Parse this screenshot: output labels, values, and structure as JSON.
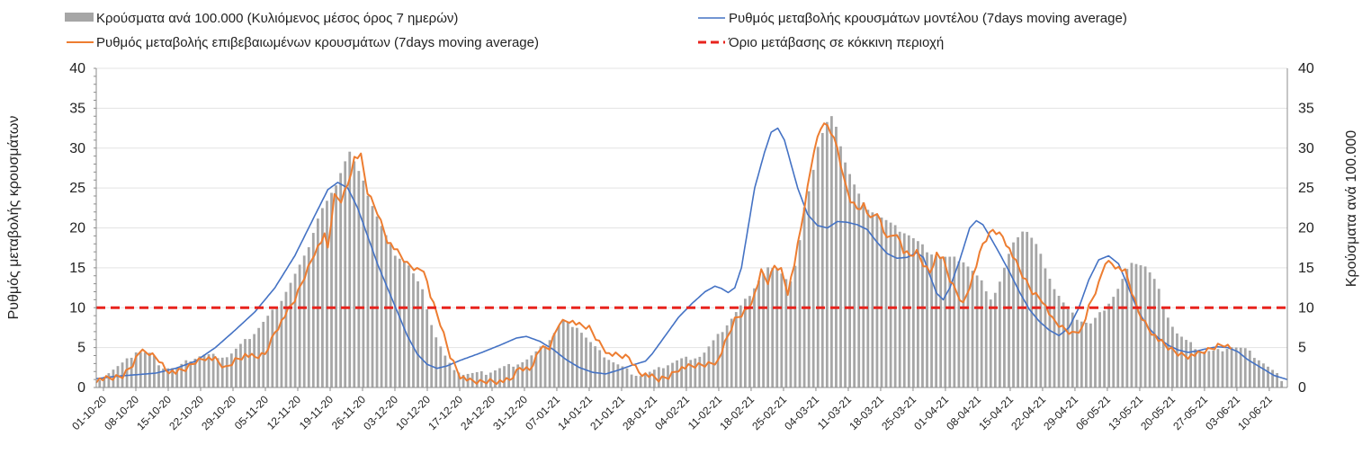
{
  "chart_data": {
    "type": "bar+line",
    "legend": [
      {
        "key": "bars",
        "label": "Κρούσματα ανά 100.000 (Κυλιόμενος μέσος όρος 7 ημερών)",
        "color": "#a6a6a6",
        "style": "bar"
      },
      {
        "key": "model",
        "label": "Ρυθμός μεταβολής κρουσμάτων μοντέλου (7days moving average)",
        "color": "#4472c4",
        "style": "line"
      },
      {
        "key": "confirmed",
        "label": "Ρυθμός μεταβολής επιβεβαιωμένων κρουσμάτων (7days moving average)",
        "color": "#ed7d31",
        "style": "line"
      },
      {
        "key": "threshold",
        "label": "Όριο μετάβασης σε κόκκινη περιοχή",
        "color": "#e8231d",
        "style": "dashed"
      }
    ],
    "y_left_label": "Ρυθμός μεταβολής κρουσμάτων",
    "y_right_label": "Κρούσματα ανά 100.000",
    "y_left_ticks": [
      "0",
      "5",
      "10",
      "15",
      "20",
      "25",
      "30",
      "35",
      "40"
    ],
    "y_right_ticks": [
      "0",
      "5",
      "10",
      "15",
      "20",
      "25",
      "30",
      "35",
      "40"
    ],
    "ylim": [
      0,
      40
    ],
    "threshold": 10,
    "x_ticks": [
      "01-10-20",
      "08-10-20",
      "15-10-20",
      "22-10-20",
      "29-10-20",
      "05-11-20",
      "12-11-20",
      "19-11-20",
      "26-11-20",
      "03-12-20",
      "10-12-20",
      "17-12-20",
      "24-12-20",
      "31-12-20",
      "07-01-21",
      "14-01-21",
      "21-01-21",
      "28-01-21",
      "04-02-21",
      "11-02-21",
      "18-02-21",
      "25-02-21",
      "04-03-21",
      "11-03-21",
      "18-03-21",
      "25-03-21",
      "01-04-21",
      "08-04-21",
      "15-04-21",
      "22-04-21",
      "29-04-21",
      "06-05-21",
      "13-05-21",
      "20-05-21",
      "27-05-21",
      "03-06-21",
      "10-06-21"
    ],
    "n_days": 261,
    "bar_anchors": [
      [
        0,
        1.2
      ],
      [
        7,
        3.2
      ],
      [
        10,
        4.6
      ],
      [
        14,
        4.2
      ],
      [
        17,
        2.6
      ],
      [
        21,
        2.4
      ],
      [
        25,
        3.6
      ],
      [
        28,
        4.1
      ],
      [
        35,
        3.9
      ],
      [
        42,
        6.8
      ],
      [
        49,
        10.6
      ],
      [
        56,
        16.5
      ],
      [
        60,
        22
      ],
      [
        63,
        24
      ],
      [
        66,
        27.5
      ],
      [
        68,
        29.7
      ],
      [
        72,
        25.5
      ],
      [
        76,
        21
      ],
      [
        80,
        17
      ],
      [
        84,
        15.5
      ],
      [
        88,
        12
      ],
      [
        91,
        7
      ],
      [
        95,
        3
      ],
      [
        99,
        1.7
      ],
      [
        105,
        1.8
      ],
      [
        109,
        2.4
      ],
      [
        112,
        2.8
      ],
      [
        116,
        3.4
      ],
      [
        119,
        4.4
      ],
      [
        122,
        5.7
      ],
      [
        126,
        8.3
      ],
      [
        130,
        7.7
      ],
      [
        133,
        6
      ],
      [
        136,
        4.5
      ],
      [
        140,
        3.2
      ],
      [
        144,
        2.1
      ],
      [
        147,
        1.5
      ],
      [
        152,
        2.2
      ],
      [
        154,
        2.8
      ],
      [
        158,
        3.5
      ],
      [
        164,
        4.0
      ],
      [
        168,
        6.2
      ],
      [
        172,
        8.6
      ],
      [
        176,
        11
      ],
      [
        180,
        13.8
      ],
      [
        182,
        15
      ],
      [
        186,
        14.5
      ],
      [
        188,
        13
      ],
      [
        190,
        16
      ],
      [
        192,
        22.5
      ],
      [
        194,
        26.5
      ],
      [
        196,
        31
      ],
      [
        198,
        33
      ],
      [
        199,
        34.3
      ],
      [
        201,
        32
      ],
      [
        203,
        28.5
      ],
      [
        205,
        26
      ],
      [
        208,
        23
      ],
      [
        211,
        22
      ],
      [
        214,
        21
      ],
      [
        217,
        20
      ],
      [
        220,
        19.3
      ],
      [
        223,
        18.2
      ],
      [
        226,
        17
      ],
      [
        229,
        16.4
      ],
      [
        232,
        16.2
      ],
      [
        235,
        16
      ],
      [
        238,
        14.5
      ],
      [
        241,
        12.8
      ],
      [
        243,
        11
      ],
      [
        245,
        13
      ],
      [
        248,
        17
      ],
      [
        250,
        19
      ],
      [
        252,
        20
      ],
      [
        255,
        18
      ],
      [
        258,
        14.8
      ],
      [
        260,
        12.5
      ],
      [
        262,
        11
      ],
      [
        264,
        9.5
      ],
      [
        266,
        8.8
      ],
      [
        268,
        8.3
      ],
      [
        270,
        8
      ],
      [
        273,
        9.5
      ],
      [
        277,
        12
      ],
      [
        280,
        14.8
      ],
      [
        282,
        15.8
      ],
      [
        285,
        15.2
      ],
      [
        288,
        13
      ],
      [
        290,
        10
      ],
      [
        293,
        7
      ],
      [
        296,
        5.8
      ],
      [
        300,
        4.6
      ],
      [
        304,
        4.5
      ],
      [
        308,
        5.2
      ],
      [
        312,
        4.8
      ],
      [
        316,
        3.5
      ],
      [
        322,
        1.1
      ]
    ],
    "model_anchors": [
      [
        0,
        1.1
      ],
      [
        6,
        1.4
      ],
      [
        12,
        1.6
      ],
      [
        18,
        1.8
      ],
      [
        24,
        2.4
      ],
      [
        30,
        3.3
      ],
      [
        36,
        5
      ],
      [
        42,
        7.2
      ],
      [
        48,
        9.5
      ],
      [
        54,
        12.5
      ],
      [
        60,
        16.5
      ],
      [
        66,
        21.5
      ],
      [
        70,
        24.8
      ],
      [
        73,
        25.7
      ],
      [
        76,
        25
      ],
      [
        79,
        22.5
      ],
      [
        82,
        19
      ],
      [
        85,
        15.5
      ],
      [
        88,
        12.5
      ],
      [
        91,
        9.5
      ],
      [
        94,
        6.5
      ],
      [
        97,
        4.2
      ],
      [
        100,
        2.9
      ],
      [
        103,
        2.4
      ],
      [
        106,
        2.7
      ],
      [
        110,
        3.4
      ],
      [
        116,
        4.3
      ],
      [
        122,
        5.3
      ],
      [
        127,
        6.2
      ],
      [
        130,
        6.4
      ],
      [
        134,
        5.8
      ],
      [
        138,
        4.8
      ],
      [
        142,
        3.5
      ],
      [
        146,
        2.5
      ],
      [
        150,
        1.9
      ],
      [
        154,
        1.7
      ],
      [
        158,
        2.2
      ],
      [
        162,
        2.8
      ],
      [
        166,
        3.3
      ],
      [
        168,
        4.2
      ],
      [
        172,
        6.5
      ],
      [
        176,
        8.8
      ],
      [
        180,
        10.5
      ],
      [
        184,
        12
      ],
      [
        187,
        12.7
      ],
      [
        189,
        12.4
      ],
      [
        191,
        11.9
      ],
      [
        193,
        12.5
      ],
      [
        195,
        15
      ],
      [
        197,
        20
      ],
      [
        199,
        25
      ],
      [
        202,
        29.5
      ],
      [
        204,
        32
      ],
      [
        206,
        32.5
      ],
      [
        208,
        31
      ],
      [
        210,
        28
      ],
      [
        212,
        25
      ],
      [
        215,
        21.7
      ],
      [
        218,
        20.3
      ],
      [
        221,
        20
      ],
      [
        224,
        20.8
      ],
      [
        227,
        20.7
      ],
      [
        230,
        20.4
      ],
      [
        233,
        19.8
      ],
      [
        236,
        18.2
      ],
      [
        239,
        16.8
      ],
      [
        242,
        16.2
      ],
      [
        245,
        16.3
      ],
      [
        248,
        16.9
      ],
      [
        250,
        16.3
      ],
      [
        252,
        14
      ],
      [
        254,
        11.8
      ],
      [
        256,
        11
      ],
      [
        258,
        12.5
      ],
      [
        261,
        16
      ],
      [
        264,
        20
      ],
      [
        266,
        20.9
      ],
      [
        268,
        20.4
      ],
      [
        270,
        19
      ],
      [
        273,
        16.8
      ],
      [
        276,
        14.5
      ],
      [
        279,
        12
      ],
      [
        282,
        9.8
      ],
      [
        285,
        8.3
      ],
      [
        288,
        7.2
      ],
      [
        291,
        6.5
      ],
      [
        294,
        7.5
      ],
      [
        297,
        10
      ],
      [
        300,
        13.5
      ],
      [
        303,
        16
      ],
      [
        306,
        16.5
      ],
      [
        309,
        15.5
      ],
      [
        312,
        12.5
      ],
      [
        315,
        9.5
      ],
      [
        318,
        7.5
      ],
      [
        321,
        6.2
      ],
      [
        324,
        5.3
      ],
      [
        327,
        4.7
      ],
      [
        330,
        4.4
      ],
      [
        333,
        4.6
      ],
      [
        336,
        4.9
      ],
      [
        339,
        5.1
      ],
      [
        342,
        5.0
      ],
      [
        345,
        4.5
      ],
      [
        348,
        3.5
      ],
      [
        352,
        2.5
      ],
      [
        356,
        1.5
      ],
      [
        360,
        1.0
      ]
    ],
    "confirmed_anchors": [
      [
        0,
        1.0
      ],
      [
        5,
        1.2
      ],
      [
        8,
        1.5
      ],
      [
        11,
        3
      ],
      [
        13,
        4.5
      ],
      [
        16,
        4.3
      ],
      [
        19,
        3.5
      ],
      [
        21,
        2.3
      ],
      [
        24,
        1.9
      ],
      [
        27,
        2.3
      ],
      [
        30,
        3.3
      ],
      [
        33,
        3.8
      ],
      [
        36,
        3.5
      ],
      [
        39,
        2.4
      ],
      [
        42,
        3.5
      ],
      [
        45,
        4.1
      ],
      [
        48,
        3.8
      ],
      [
        51,
        4.2
      ],
      [
        54,
        7
      ],
      [
        57,
        9
      ],
      [
        60,
        11
      ],
      [
        63,
        14
      ],
      [
        66,
        17
      ],
      [
        69,
        19
      ],
      [
        70,
        17.5
      ],
      [
        72,
        24
      ],
      [
        74,
        23.5
      ],
      [
        76,
        25.5
      ],
      [
        78,
        28.8
      ],
      [
        80,
        29
      ],
      [
        82,
        24.5
      ],
      [
        85,
        22
      ],
      [
        88,
        18.5
      ],
      [
        91,
        17
      ],
      [
        94,
        15.5
      ],
      [
        97,
        14.8
      ],
      [
        99,
        14.9
      ],
      [
        101,
        11.5
      ],
      [
        104,
        8
      ],
      [
        107,
        4
      ],
      [
        110,
        1.5
      ],
      [
        113,
        0.8
      ],
      [
        116,
        0.7
      ],
      [
        119,
        0.9
      ],
      [
        122,
        0.8
      ],
      [
        125,
        0.9
      ],
      [
        128,
        2.5
      ],
      [
        131,
        2.3
      ],
      [
        134,
        4.8
      ],
      [
        137,
        5
      ],
      [
        140,
        8.2
      ],
      [
        143,
        8.5
      ],
      [
        146,
        7.8
      ],
      [
        149,
        7.5
      ],
      [
        152,
        5.7
      ],
      [
        155,
        4.2
      ],
      [
        158,
        4
      ],
      [
        161,
        3.8
      ],
      [
        164,
        2
      ],
      [
        167,
        1.5
      ],
      [
        170,
        1
      ],
      [
        173,
        1.4
      ],
      [
        176,
        2.4
      ],
      [
        179,
        2.6
      ],
      [
        182,
        2.8
      ],
      [
        185,
        3
      ],
      [
        188,
        3.4
      ],
      [
        190,
        5.5
      ],
      [
        193,
        8.5
      ],
      [
        195,
        9.2
      ],
      [
        197,
        10
      ],
      [
        199,
        11.7
      ],
      [
        201,
        14.5
      ],
      [
        203,
        13.2
      ],
      [
        205,
        15.3
      ],
      [
        207,
        14.8
      ],
      [
        209,
        12
      ],
      [
        211,
        15.5
      ],
      [
        213,
        20
      ],
      [
        215,
        25
      ],
      [
        217,
        30
      ],
      [
        219,
        32.5
      ],
      [
        220,
        33.5
      ],
      [
        222,
        32
      ],
      [
        224,
        30
      ],
      [
        226,
        26
      ],
      [
        228,
        23.5
      ],
      [
        230,
        22.5
      ],
      [
        232,
        23
      ],
      [
        234,
        21
      ],
      [
        236,
        22
      ],
      [
        238,
        19.5
      ],
      [
        240,
        18.8
      ],
      [
        242,
        19.5
      ],
      [
        244,
        17
      ],
      [
        246,
        16.5
      ],
      [
        248,
        17
      ],
      [
        250,
        15.5
      ],
      [
        252,
        14.5
      ],
      [
        254,
        16.8
      ],
      [
        256,
        16
      ],
      [
        258,
        13.5
      ],
      [
        260,
        12
      ],
      [
        262,
        10.5
      ],
      [
        265,
        14
      ],
      [
        268,
        18
      ],
      [
        271,
        19.8
      ],
      [
        274,
        19
      ],
      [
        277,
        16.5
      ],
      [
        280,
        14
      ],
      [
        283,
        12
      ],
      [
        286,
        11
      ],
      [
        289,
        8.5
      ],
      [
        292,
        7.5
      ],
      [
        295,
        6.8
      ],
      [
        298,
        7.5
      ],
      [
        300,
        10
      ],
      [
        303,
        13
      ],
      [
        305,
        15.8
      ],
      [
        307,
        15.6
      ],
      [
        309,
        15
      ],
      [
        311,
        14.5
      ],
      [
        313,
        12
      ],
      [
        315,
        9.5
      ],
      [
        318,
        7.5
      ],
      [
        321,
        6
      ],
      [
        324,
        5
      ],
      [
        327,
        4.3
      ],
      [
        330,
        4
      ],
      [
        333,
        4.2
      ],
      [
        336,
        4.7
      ],
      [
        339,
        5.3
      ],
      [
        341,
        5.5
      ],
      [
        343,
        5
      ]
    ]
  }
}
